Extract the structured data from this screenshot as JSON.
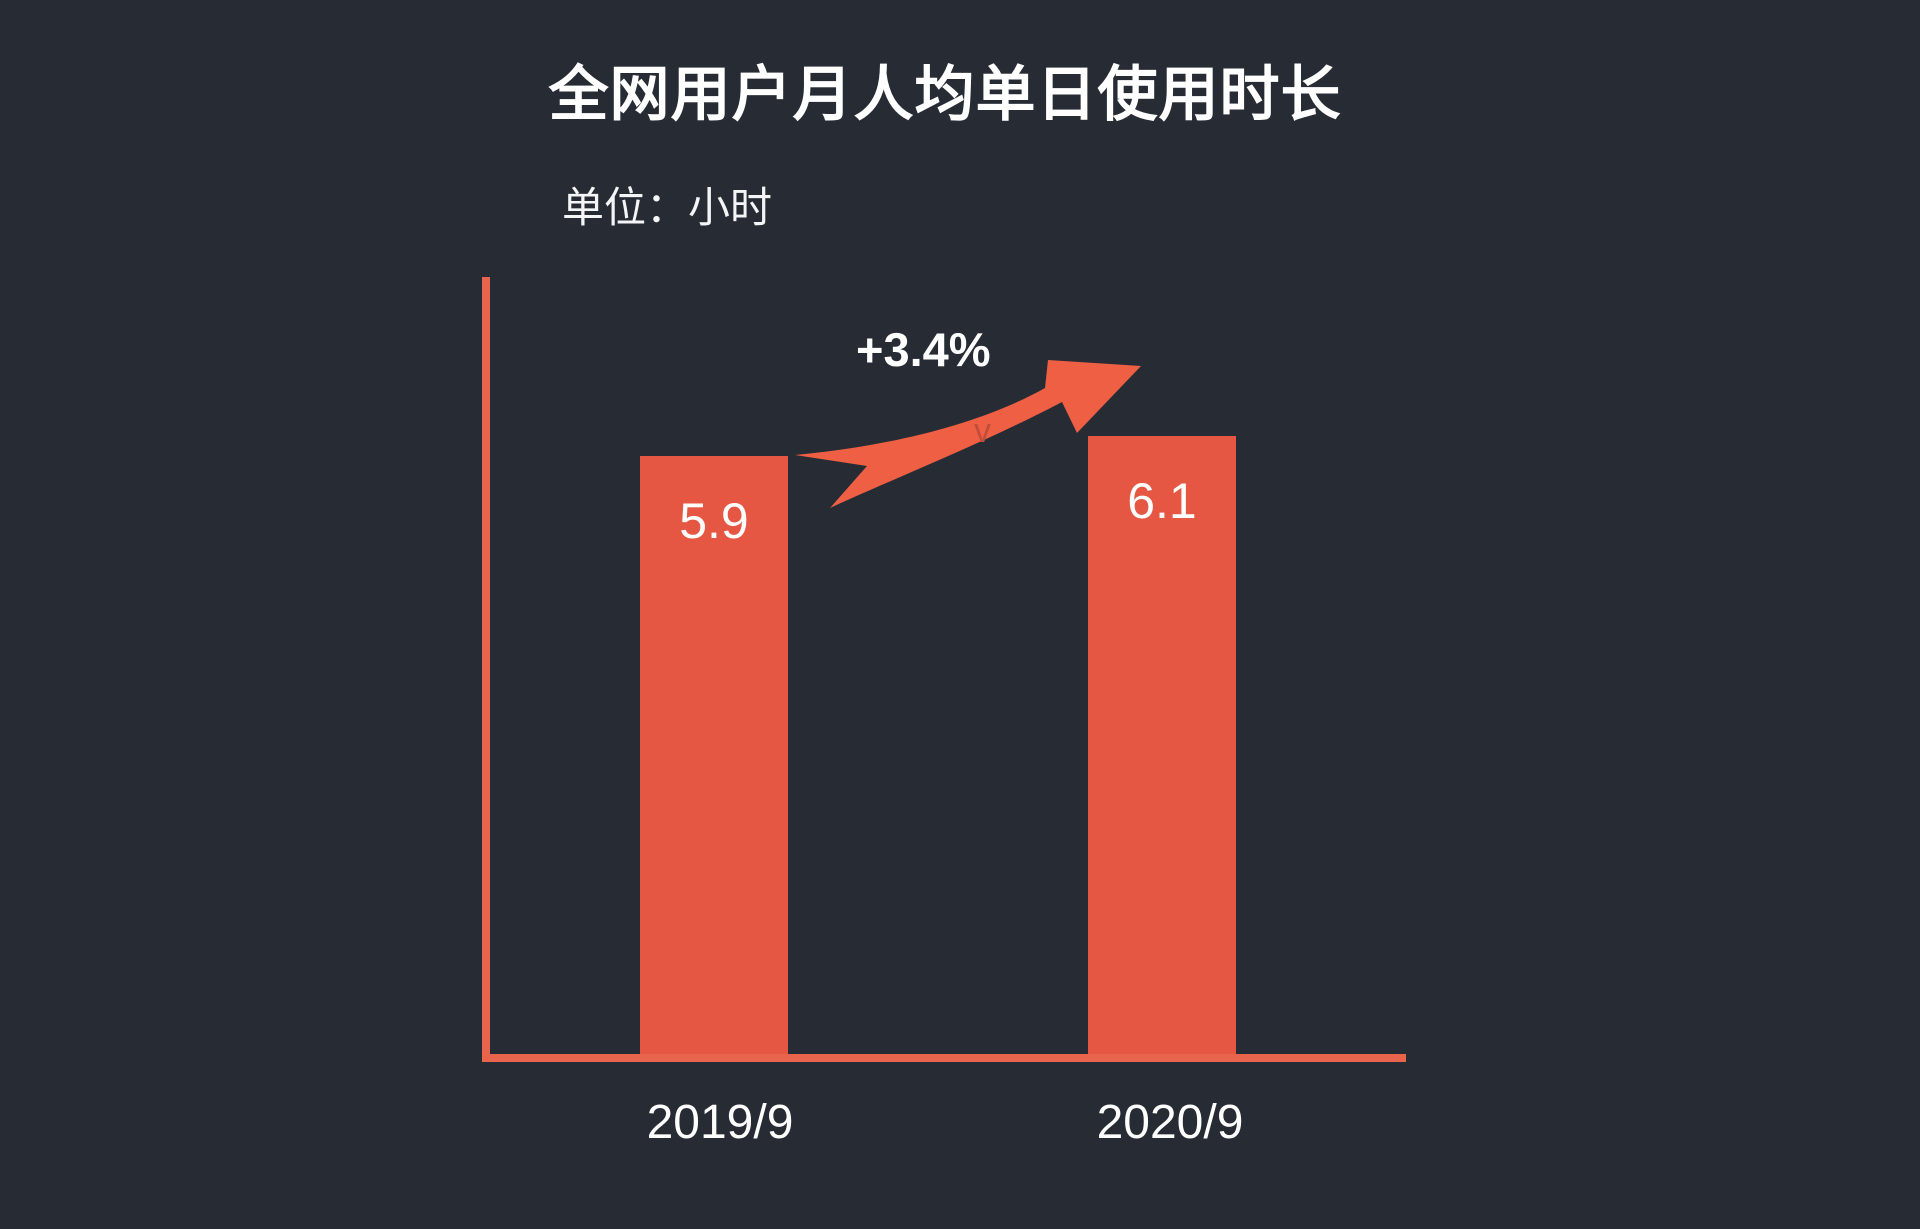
{
  "chart_data": {
    "type": "bar",
    "title": "全网用户月人均单日使用时长",
    "unit_label": "单位：小时",
    "unit": "小时",
    "categories": [
      "2019/9",
      "2020/9"
    ],
    "values": [
      5.9,
      6.1
    ],
    "annotation": "+3.4%",
    "ylabel": "",
    "xlabel": "",
    "ylim": [
      0,
      6.1
    ],
    "grid": false,
    "legend": false,
    "watermark": "v"
  },
  "style": {
    "background": "#272c34",
    "bar_color": "#e55742",
    "axis_color": "#e8644c",
    "arrow_color": "#ee5f43",
    "text_color": "#ffffff"
  }
}
